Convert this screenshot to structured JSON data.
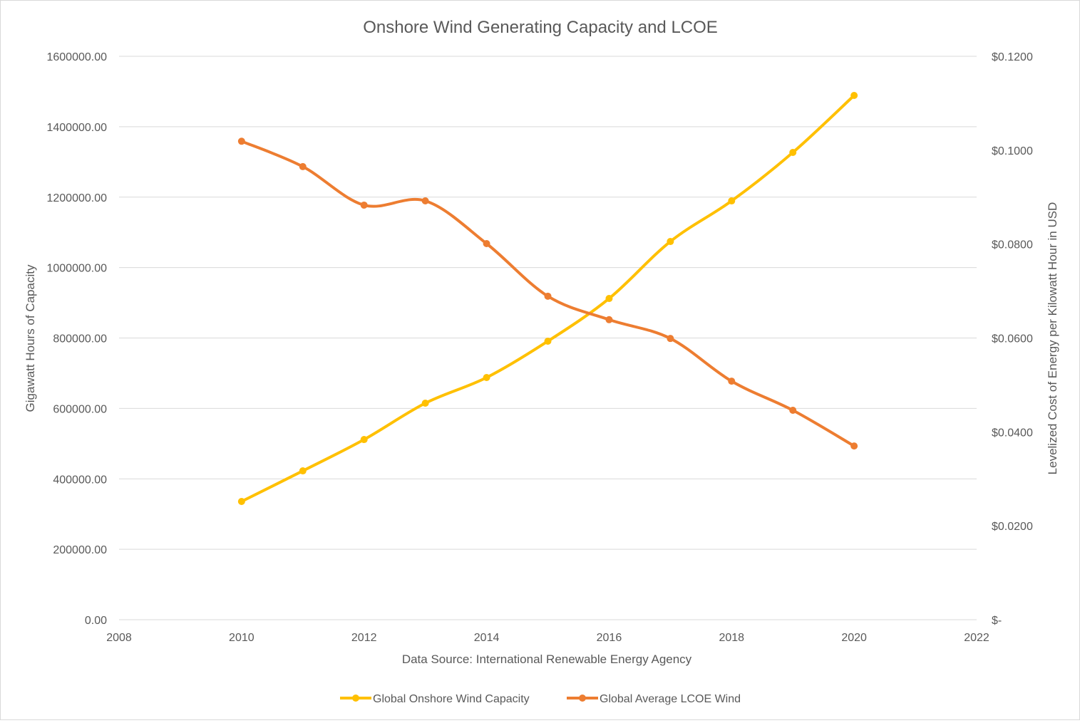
{
  "chart_data": {
    "type": "line",
    "title": "Onshore Wind Generating Capacity and LCOE",
    "xlabel": "Data Source: International Renewable Energy Agency",
    "ylabel": "Gigawatt Hours of Capacity",
    "y2label": "Levelized Cost of Energy per Kilowatt Hour in USD",
    "xlim": [
      2008,
      2022
    ],
    "ylim": [
      0,
      1600000
    ],
    "y2lim": [
      0,
      0.12
    ],
    "grid": true,
    "legend_position": "bottom",
    "x_ticks": [
      "2008",
      "2010",
      "2012",
      "2014",
      "2016",
      "2018",
      "2020",
      "2022"
    ],
    "y_ticks": [
      "0.00",
      "200000.00",
      "400000.00",
      "600000.00",
      "800000.00",
      "1000000.00",
      "1200000.00",
      "1400000.00",
      "1600000.00"
    ],
    "y2_ticks": [
      "$-",
      "$0.0200",
      "$0.0400",
      "$0.0600",
      "$0.0800",
      "$0.1000",
      "$0.1200"
    ],
    "x": [
      2010,
      2011,
      2012,
      2013,
      2014,
      2015,
      2016,
      2017,
      2018,
      2019,
      2020
    ],
    "series": [
      {
        "name": "Global Onshore Wind Capacity",
        "axis": "left",
        "color": "#FFC000",
        "values": [
          335800,
          422700,
          511700,
          614900,
          687700,
          790900,
          912200,
          1074000,
          1189300,
          1326900,
          1488700
        ]
      },
      {
        "name": "Global Average LCOE Wind",
        "axis": "right",
        "color": "#ED7D31",
        "values": [
          0.1019,
          0.0965,
          0.0883,
          0.0892,
          0.0801,
          0.0689,
          0.0639,
          0.0599,
          0.0508,
          0.0446,
          0.037
        ]
      }
    ]
  }
}
